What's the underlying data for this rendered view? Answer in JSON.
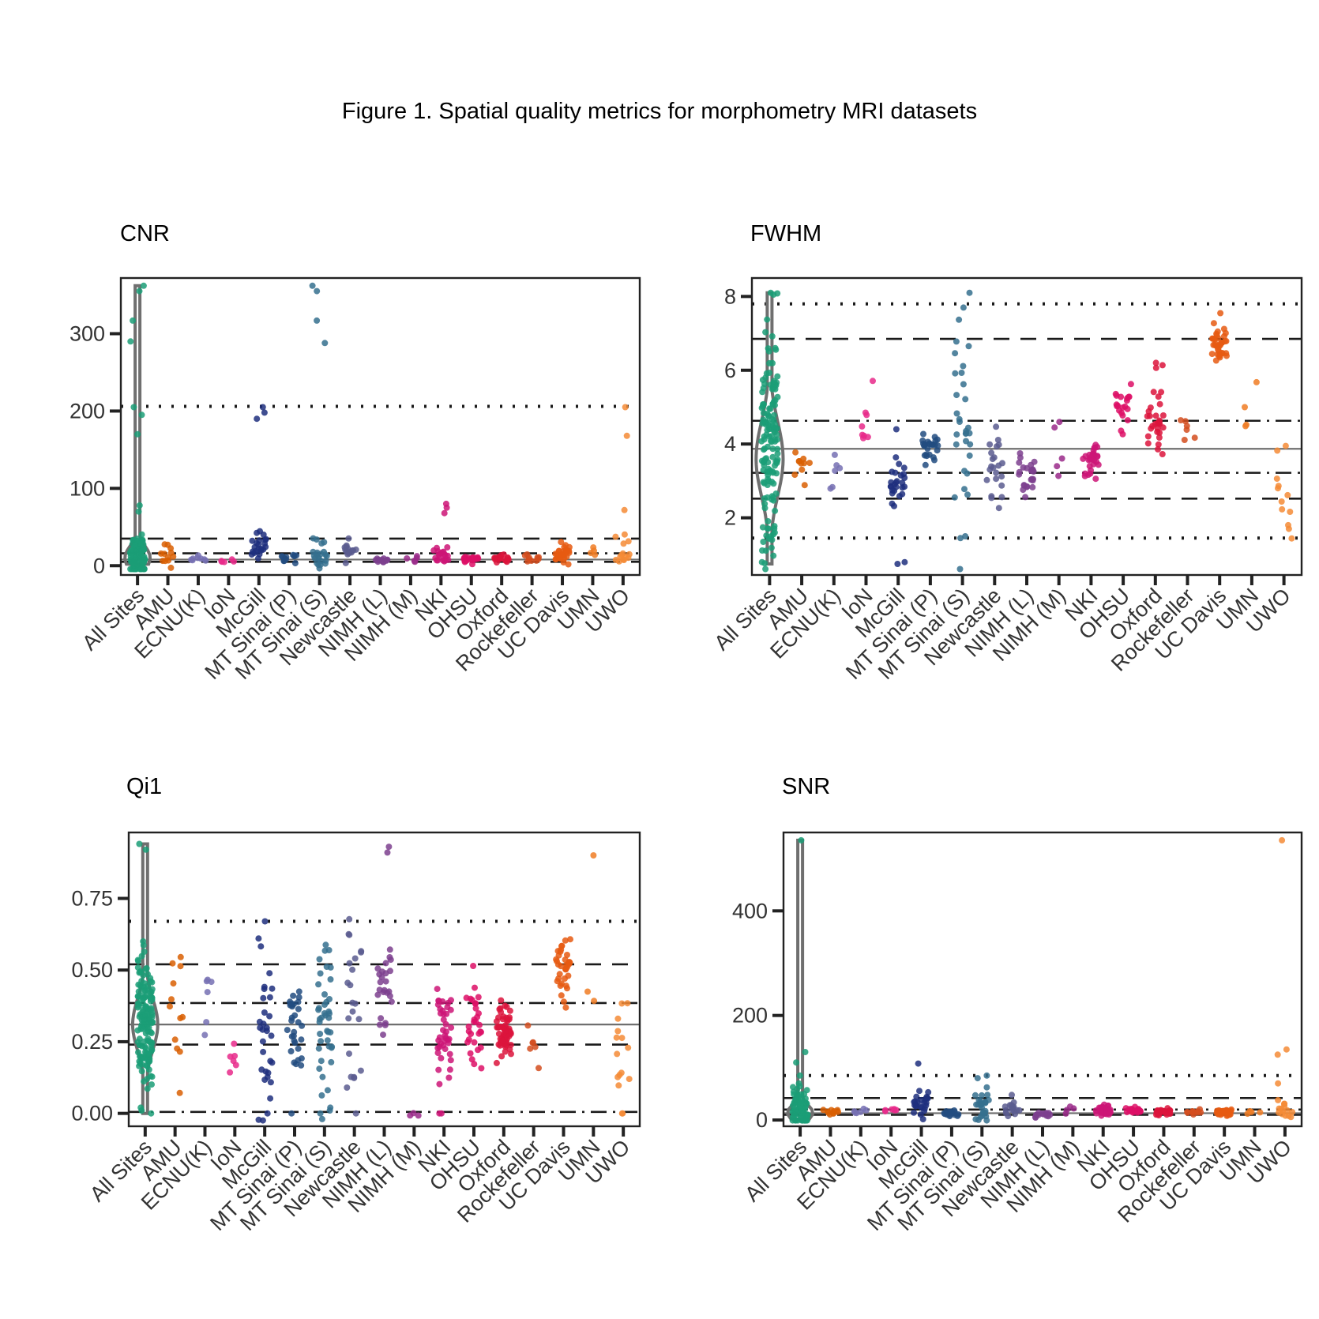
{
  "figure": {
    "title": "Figure 1. Spatial quality metrics for morphometry MRI datasets"
  },
  "colors": {
    "sites": [
      "#1b9e77",
      "#d95f02",
      "#7570b3",
      "#e7298a",
      "#1f2f7e",
      "#224c80",
      "#35708e",
      "#5a5c8f",
      "#7c3f8e",
      "#9a2a8a",
      "#cc1577",
      "#dd0f66",
      "#dc143c",
      "#d34d1f",
      "#e65a12",
      "#f07d24",
      "#f58b36"
    ],
    "violin": "#6f6f6f",
    "median": "#6f6f6f",
    "ref": "#1a1a1a",
    "frame": "#222222"
  },
  "chart_data": [
    {
      "type": "scatter",
      "title": "CNR",
      "categories": [
        "All Sites",
        "AMU",
        "ECNU(K)",
        "IoN",
        "McGill",
        "MT Sinai (P)",
        "MT Sinai (S)",
        "Newcastle",
        "NIMH (L)",
        "NIMH (M)",
        "NKI",
        "OHSU",
        "Oxford",
        "Rockefeller",
        "UC Davis",
        "UMN",
        "UWO"
      ],
      "ylim": [
        -12,
        372
      ],
      "yticks": [
        0,
        100,
        200,
        300
      ],
      "median": 8,
      "ref_lines": [
        {
          "value": 206,
          "style": "dotted"
        },
        {
          "value": 35,
          "style": "dashed"
        },
        {
          "value": 16,
          "style": "dashdot"
        },
        {
          "value": 5,
          "style": "dashed"
        }
      ],
      "violin": {
        "min": 2,
        "max": 362,
        "center": 10,
        "spread": 15
      },
      "sites": [
        {
          "center": 12,
          "spread": 14,
          "n": 90,
          "extra": [
            355,
            362,
            317,
            290,
            205,
            195,
            170,
            78,
            70
          ]
        },
        {
          "center": 15,
          "spread": 10,
          "n": 12,
          "extra": []
        },
        {
          "center": 8,
          "spread": 2,
          "n": 8,
          "extra": []
        },
        {
          "center": 6,
          "spread": 1,
          "n": 5,
          "extra": []
        },
        {
          "center": 25,
          "spread": 9,
          "n": 22,
          "extra": [
            205,
            198,
            190
          ]
        },
        {
          "center": 10,
          "spread": 4,
          "n": 12,
          "extra": []
        },
        {
          "center": 15,
          "spread": 8,
          "n": 22,
          "extra": [
            362,
            355,
            317,
            288
          ]
        },
        {
          "center": 18,
          "spread": 8,
          "n": 15,
          "extra": []
        },
        {
          "center": 7,
          "spread": 2,
          "n": 14,
          "extra": []
        },
        {
          "center": 10,
          "spread": 4,
          "n": 5,
          "extra": []
        },
        {
          "center": 12,
          "spread": 6,
          "n": 20,
          "extra": [
            80,
            75,
            68
          ]
        },
        {
          "center": 9,
          "spread": 2,
          "n": 20,
          "extra": []
        },
        {
          "center": 9,
          "spread": 2,
          "n": 20,
          "extra": []
        },
        {
          "center": 11,
          "spread": 3,
          "n": 10,
          "extra": []
        },
        {
          "center": 14,
          "spread": 6,
          "n": 30,
          "extra": []
        },
        {
          "center": 15,
          "spread": 5,
          "n": 4,
          "extra": []
        },
        {
          "center": 20,
          "spread": 10,
          "n": 14,
          "extra": [
            205,
            168,
            72
          ]
        }
      ]
    },
    {
      "type": "scatter",
      "title": "FWHM",
      "categories": [
        "All Sites",
        "AMU",
        "ECNU(K)",
        "IoN",
        "McGill",
        "MT Sinai (P)",
        "MT Sinai (S)",
        "Newcastle",
        "NIMH (L)",
        "NIMH (M)",
        "NKI",
        "OHSU",
        "Oxford",
        "Rockefeller",
        "UC Davis",
        "UMN",
        "UWO"
      ],
      "ylim": [
        0.45,
        8.5
      ],
      "yticks": [
        2,
        4,
        6,
        8
      ],
      "median": 3.87,
      "ref_lines": [
        {
          "value": 7.8,
          "style": "dotted"
        },
        {
          "value": 6.85,
          "style": "dashed"
        },
        {
          "value": 4.63,
          "style": "dashdot"
        },
        {
          "value": 3.22,
          "style": "dashdot"
        },
        {
          "value": 2.52,
          "style": "dashed"
        },
        {
          "value": 1.45,
          "style": "dotted"
        }
      ],
      "violin": {
        "min": 0.75,
        "max": 8.1,
        "center": 3.6,
        "spread": 1.0
      },
      "sites": [
        {
          "center": 3.9,
          "spread": 1.3,
          "n": 140,
          "extra": [
            8.1,
            8.05,
            0.8,
            1.4,
            1.6
          ]
        },
        {
          "center": 3.5,
          "spread": 0.3,
          "n": 10,
          "extra": []
        },
        {
          "center": 3.4,
          "spread": 0.6,
          "n": 6,
          "extra": []
        },
        {
          "center": 4.4,
          "spread": 0.4,
          "n": 8,
          "extra": []
        },
        {
          "center": 2.9,
          "spread": 0.35,
          "n": 25,
          "extra": [
            4.4,
            0.8,
            0.75
          ]
        },
        {
          "center": 3.8,
          "spread": 0.25,
          "n": 25,
          "extra": []
        },
        {
          "center": 4.5,
          "spread": 1.4,
          "n": 30,
          "extra": [
            8.1,
            7.7,
            1.5,
            1.45
          ]
        },
        {
          "center": 3.4,
          "spread": 0.45,
          "n": 22,
          "extra": []
        },
        {
          "center": 3.2,
          "spread": 0.3,
          "n": 25,
          "extra": []
        },
        {
          "center": 3.9,
          "spread": 0.5,
          "n": 3,
          "extra": [
            4.6,
            3.4
          ]
        },
        {
          "center": 3.5,
          "spread": 0.25,
          "n": 30,
          "extra": []
        },
        {
          "center": 5.0,
          "spread": 0.35,
          "n": 20,
          "extra": []
        },
        {
          "center": 4.6,
          "spread": 0.55,
          "n": 30,
          "extra": [
            6.2
          ]
        },
        {
          "center": 4.3,
          "spread": 0.3,
          "n": 6,
          "extra": []
        },
        {
          "center": 6.6,
          "spread": 0.3,
          "n": 35,
          "extra": []
        },
        {
          "center": 4.4,
          "spread": 0.5,
          "n": 3,
          "extra": [
            5.0
          ]
        },
        {
          "center": 2.7,
          "spread": 0.6,
          "n": 10,
          "extra": [
            1.7,
            1.8
          ]
        }
      ]
    },
    {
      "type": "scatter",
      "title": "Qi1",
      "categories": [
        "All Sites",
        "AMU",
        "ECNU(K)",
        "IoN",
        "McGill",
        "MT Sinai (P)",
        "MT Sinai (S)",
        "Newcastle",
        "NIMH (L)",
        "NIMH (M)",
        "NKI",
        "OHSU",
        "Oxford",
        "Rockefeller",
        "UC Davis",
        "UMN",
        "UWO"
      ],
      "ylim": [
        -0.045,
        0.98
      ],
      "yticks": [
        0.0,
        0.25,
        0.5,
        0.75
      ],
      "ytick_labels": [
        "0.00",
        "0.25",
        "0.50",
        "0.75"
      ],
      "median": 0.31,
      "ref_lines": [
        {
          "value": 0.67,
          "style": "dotted"
        },
        {
          "value": 0.52,
          "style": "dashed"
        },
        {
          "value": 0.385,
          "style": "dashdot"
        },
        {
          "value": 0.24,
          "style": "dashed"
        },
        {
          "value": 0.005,
          "style": "dashdot"
        }
      ],
      "violin": {
        "min": 0.0,
        "max": 0.94,
        "center": 0.31,
        "spread": 0.09
      },
      "sites": [
        {
          "center": 0.32,
          "spread": 0.11,
          "n": 150,
          "extra": [
            0.94,
            0.92,
            0.0,
            0.01,
            0.02
          ]
        },
        {
          "center": 0.33,
          "spread": 0.12,
          "n": 12,
          "extra": []
        },
        {
          "center": 0.38,
          "spread": 0.09,
          "n": 6,
          "extra": []
        },
        {
          "center": 0.2,
          "spread": 0.04,
          "n": 6,
          "extra": []
        },
        {
          "center": 0.3,
          "spread": 0.13,
          "n": 30,
          "extra": [
            0.67,
            0.0
          ]
        },
        {
          "center": 0.28,
          "spread": 0.1,
          "n": 30,
          "extra": [
            0.0
          ]
        },
        {
          "center": 0.28,
          "spread": 0.15,
          "n": 40,
          "extra": [
            0.0,
            0.01,
            0.02
          ]
        },
        {
          "center": 0.4,
          "spread": 0.15,
          "n": 20,
          "extra": [
            0.0,
            0.09
          ]
        },
        {
          "center": 0.43,
          "spread": 0.08,
          "n": 25,
          "extra": [
            0.93,
            0.91
          ]
        },
        {
          "center": 0.0,
          "spread": 0.005,
          "n": 3,
          "extra": []
        },
        {
          "center": 0.28,
          "spread": 0.08,
          "n": 40,
          "extra": [
            0.0,
            0.0
          ]
        },
        {
          "center": 0.3,
          "spread": 0.1,
          "n": 30,
          "extra": []
        },
        {
          "center": 0.28,
          "spread": 0.05,
          "n": 60,
          "extra": []
        },
        {
          "center": 0.27,
          "spread": 0.05,
          "n": 6,
          "extra": []
        },
        {
          "center": 0.5,
          "spread": 0.05,
          "n": 35,
          "extra": []
        },
        {
          "center": 0.41,
          "spread": 0.02,
          "n": 2,
          "extra": [
            0.9
          ]
        },
        {
          "center": 0.25,
          "spread": 0.08,
          "n": 12,
          "extra": [
            0.0,
            0.0,
            0.12
          ]
        }
      ]
    },
    {
      "type": "scatter",
      "title": "SNR",
      "categories": [
        "All Sites",
        "AMU",
        "ECNU(K)",
        "IoN",
        "McGill",
        "MT Sinai (P)",
        "MT Sinai (S)",
        "Newcastle",
        "NIMH (L)",
        "NIMH (M)",
        "NKI",
        "OHSU",
        "Oxford",
        "Rockefeller",
        "UC Davis",
        "UMN",
        "UWO"
      ],
      "ylim": [
        -12,
        550
      ],
      "yticks": [
        0,
        200,
        400
      ],
      "median": 13,
      "ref_lines": [
        {
          "value": 85,
          "style": "dotted"
        },
        {
          "value": 42,
          "style": "dashed"
        },
        {
          "value": 20,
          "style": "dashdot"
        },
        {
          "value": 10,
          "style": "dashed"
        }
      ],
      "violin": {
        "min": 2,
        "max": 535,
        "center": 14,
        "spread": 15
      },
      "sites": [
        {
          "center": 20,
          "spread": 18,
          "n": 80,
          "extra": [
            535,
            130,
            110,
            85,
            70
          ]
        },
        {
          "center": 14,
          "spread": 3,
          "n": 10,
          "extra": []
        },
        {
          "center": 18,
          "spread": 3,
          "n": 6,
          "extra": []
        },
        {
          "center": 18,
          "spread": 2,
          "n": 6,
          "extra": []
        },
        {
          "center": 35,
          "spread": 15,
          "n": 25,
          "extra": [
            108
          ]
        },
        {
          "center": 12,
          "spread": 3,
          "n": 15,
          "extra": []
        },
        {
          "center": 25,
          "spread": 15,
          "n": 25,
          "extra": [
            85,
            80
          ]
        },
        {
          "center": 18,
          "spread": 6,
          "n": 15,
          "extra": [
            48
          ]
        },
        {
          "center": 11,
          "spread": 3,
          "n": 14,
          "extra": []
        },
        {
          "center": 20,
          "spread": 5,
          "n": 4,
          "extra": []
        },
        {
          "center": 18,
          "spread": 6,
          "n": 25,
          "extra": []
        },
        {
          "center": 18,
          "spread": 3,
          "n": 18,
          "extra": []
        },
        {
          "center": 15,
          "spread": 4,
          "n": 25,
          "extra": []
        },
        {
          "center": 15,
          "spread": 2,
          "n": 10,
          "extra": []
        },
        {
          "center": 14,
          "spread": 3,
          "n": 30,
          "extra": []
        },
        {
          "center": 15,
          "spread": 3,
          "n": 4,
          "extra": []
        },
        {
          "center": 20,
          "spread": 8,
          "n": 14,
          "extra": [
            535,
            135,
            125,
            70
          ]
        }
      ]
    }
  ]
}
